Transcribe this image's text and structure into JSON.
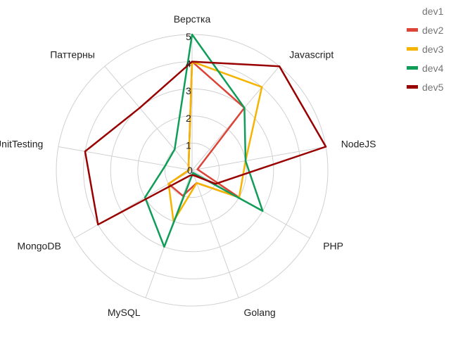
{
  "chart_data": {
    "type": "radar",
    "title": "",
    "axes": [
      "Верстка",
      "Javascript",
      "NodeJS",
      "PHP",
      "Golang",
      "MySQL",
      "MongoDB",
      "UnitTesting",
      "Паттерны"
    ],
    "radial_ticks": [
      1,
      2,
      3,
      4,
      5
    ],
    "rlim": [
      0,
      5
    ],
    "grid": true,
    "legend_position": "top-right",
    "series": [
      {
        "name": "dev1",
        "color": "#9e9e9e",
        "values": [
          0,
          0,
          0,
          0,
          0,
          0,
          0,
          0,
          0
        ],
        "hidden": true
      },
      {
        "name": "dev2",
        "color": "#db4437",
        "values": [
          4,
          3,
          0.2,
          2,
          0.5,
          1,
          1,
          0.1,
          0.2
        ]
      },
      {
        "name": "dev3",
        "color": "#f4b400",
        "values": [
          4,
          4,
          2,
          2,
          0.5,
          2,
          1,
          0.1,
          0.2
        ]
      },
      {
        "name": "dev4",
        "color": "#0f9d58",
        "values": [
          5,
          3,
          2,
          3,
          0.1,
          3,
          2,
          1,
          1
        ]
      },
      {
        "name": "dev5",
        "color": "#990000",
        "values": [
          4,
          5,
          5,
          1,
          0.2,
          0.2,
          4,
          4,
          3
        ]
      }
    ]
  }
}
